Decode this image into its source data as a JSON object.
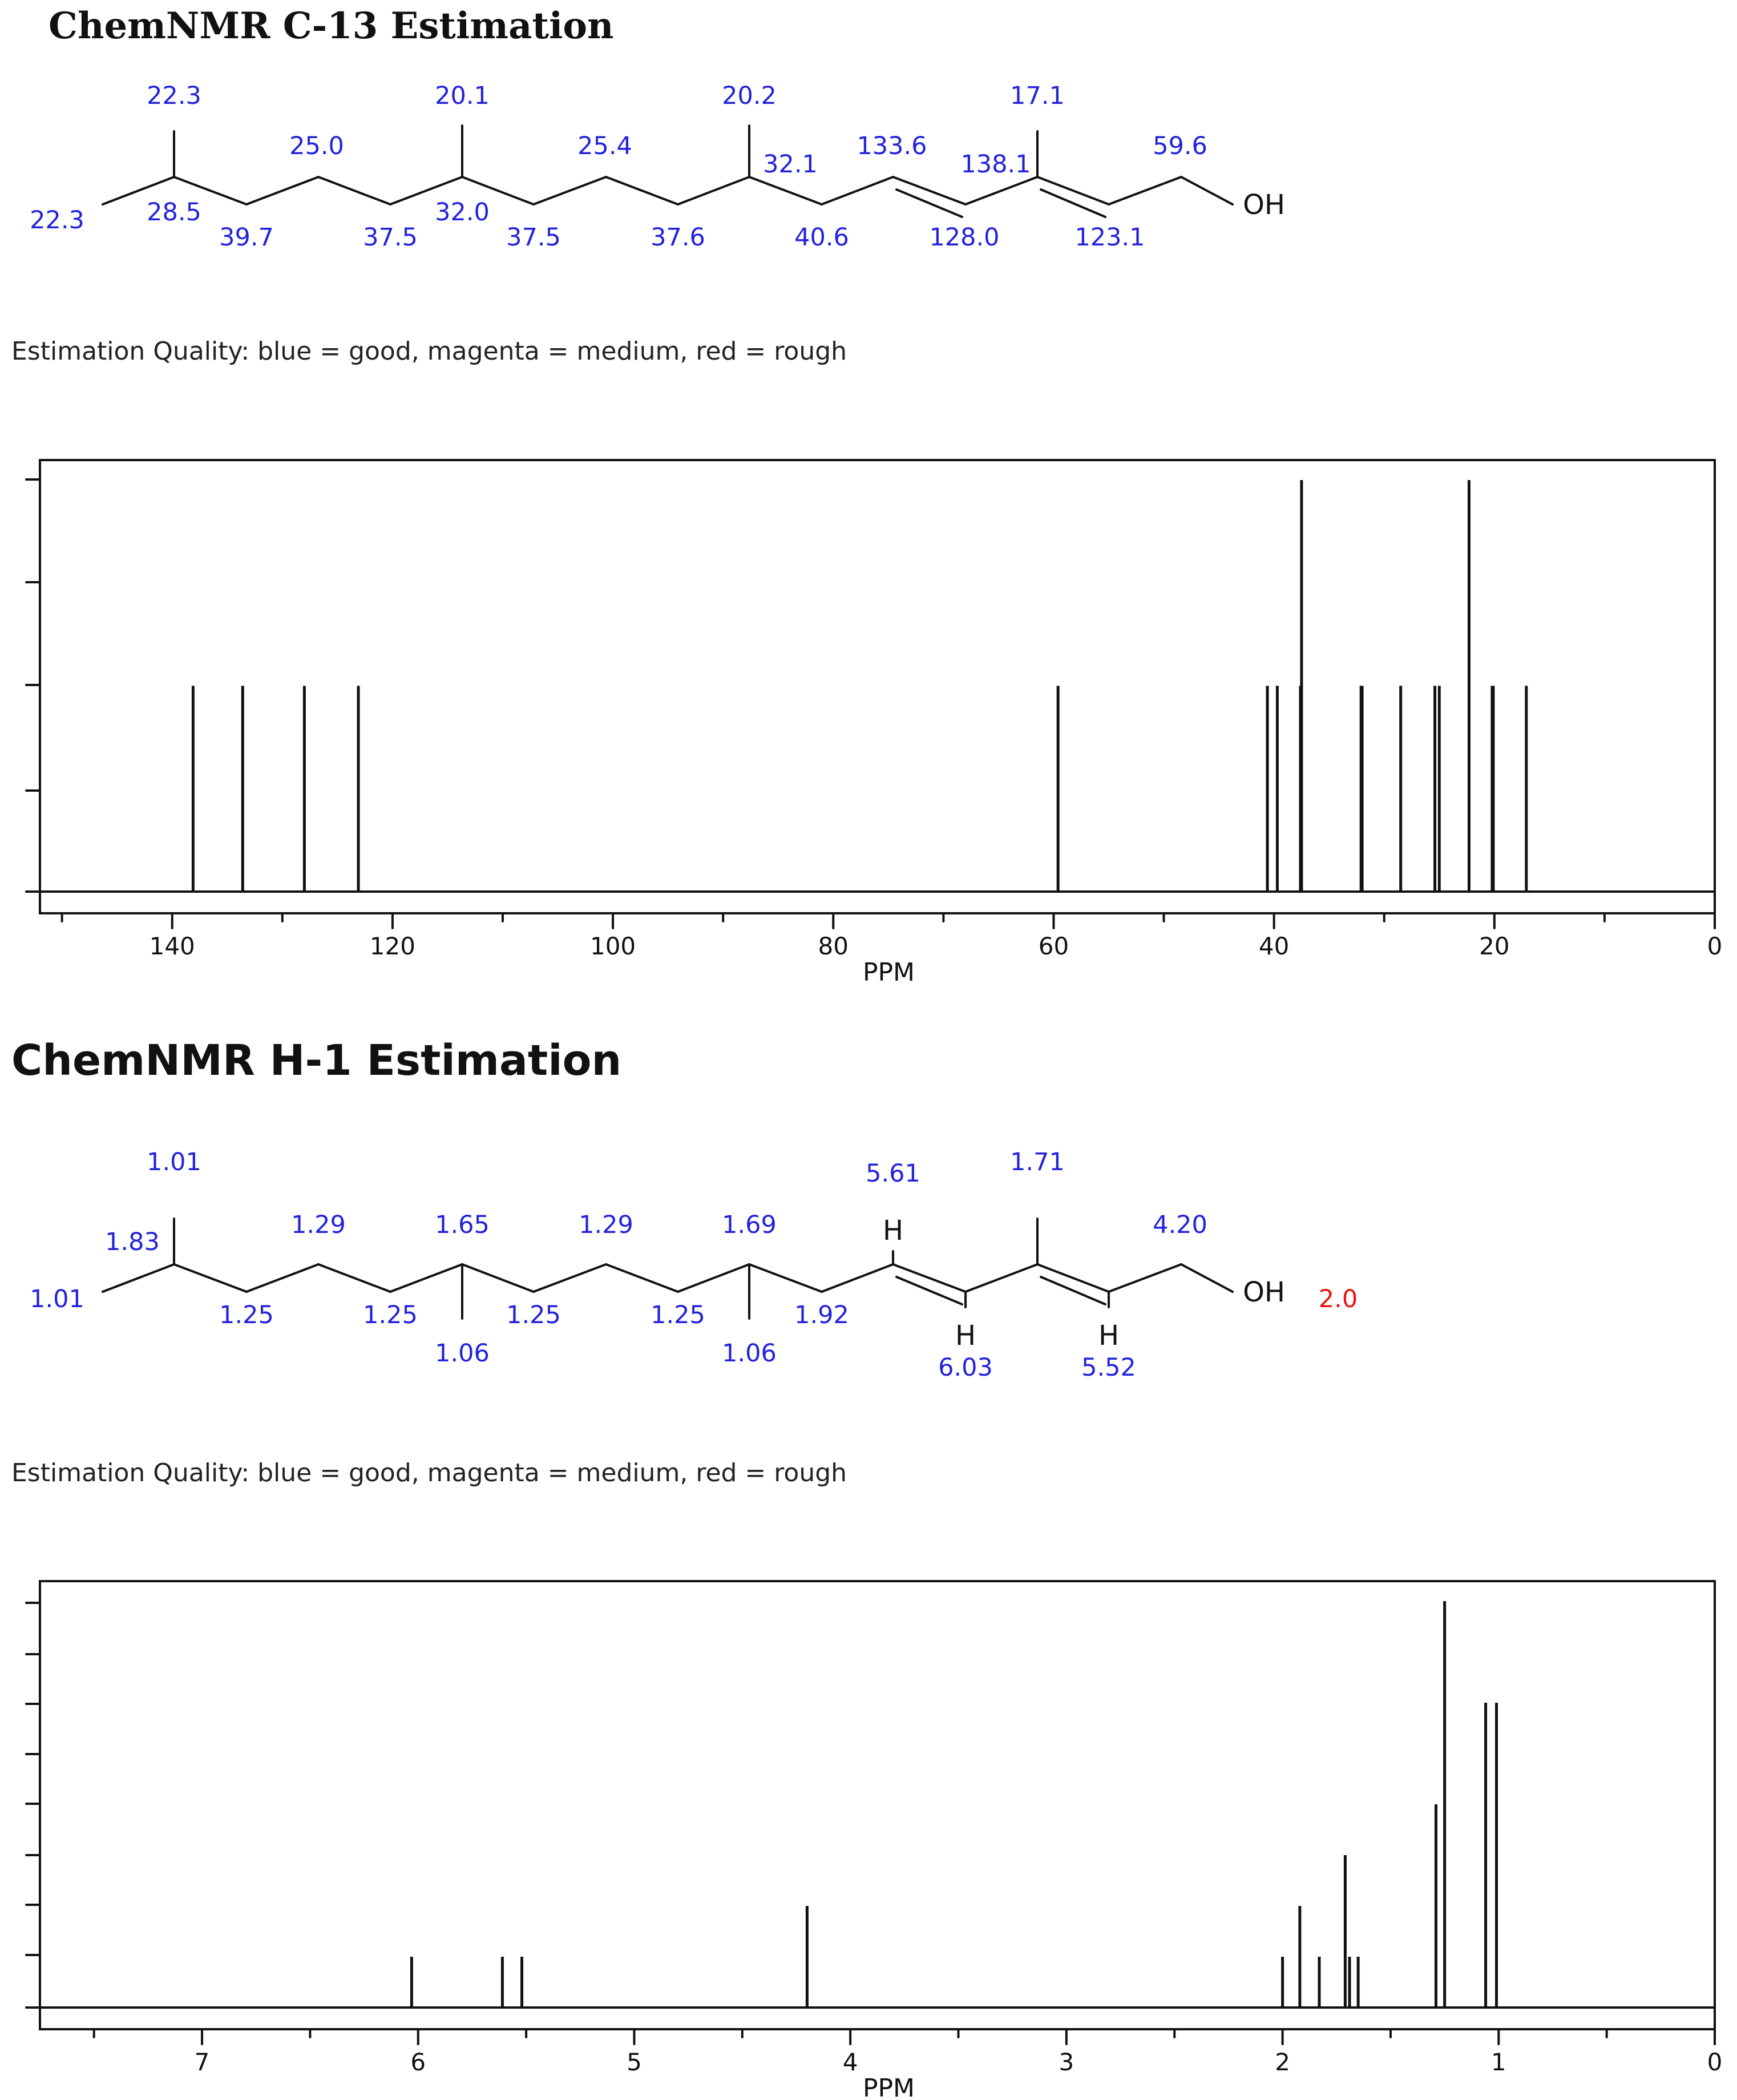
{
  "c13": {
    "title": "ChemNMR C-13 Estimation",
    "quality": "Estimation Quality: blue = good, magenta = medium, red = rough",
    "oh_label": "OH",
    "shift_labels": [
      "22.3",
      "20.1",
      "20.2",
      "17.1",
      "25.0",
      "25.4",
      "133.6",
      "59.6",
      "32.1",
      "138.1",
      "22.3",
      "28.5",
      "32.0",
      "39.7",
      "37.5",
      "37.5",
      "37.6",
      "40.6",
      "128.0",
      "123.1"
    ]
  },
  "h1": {
    "title": "ChemNMR H-1 Estimation",
    "quality": "Estimation Quality: blue = good, magenta = medium, red = rough",
    "oh_label": "OH",
    "h_label": "H",
    "shift_labels": [
      "1.01",
      "1.71",
      "5.61",
      "1.29",
      "1.65",
      "1.29",
      "1.69",
      "4.20",
      "1.83",
      "1.01",
      "1.25",
      "1.25",
      "1.25",
      "1.25",
      "1.92",
      "1.06",
      "1.06",
      "6.03",
      "5.52",
      "2.0"
    ]
  },
  "colors": {
    "good": "#2222dd",
    "rough": "#ee1111",
    "ink": "#111111"
  },
  "chart_data": [
    {
      "type": "bar",
      "xlabel": "PPM",
      "xlim": [
        152,
        0
      ],
      "x_reversed": true,
      "x_ticks": [
        "140",
        "120",
        "100",
        "80",
        "60",
        "40",
        "20",
        "0"
      ],
      "x_tick_values": [
        140,
        120,
        100,
        80,
        60,
        40,
        20,
        0
      ],
      "grid": false,
      "peaks": [
        {
          "ppm": 138.1,
          "intensity": 1
        },
        {
          "ppm": 133.6,
          "intensity": 1
        },
        {
          "ppm": 128.0,
          "intensity": 1
        },
        {
          "ppm": 123.1,
          "intensity": 1
        },
        {
          "ppm": 59.6,
          "intensity": 1
        },
        {
          "ppm": 40.6,
          "intensity": 1
        },
        {
          "ppm": 39.7,
          "intensity": 1
        },
        {
          "ppm": 37.6,
          "intensity": 1
        },
        {
          "ppm": 37.5,
          "intensity": 2
        },
        {
          "ppm": 32.1,
          "intensity": 1
        },
        {
          "ppm": 32.0,
          "intensity": 1
        },
        {
          "ppm": 28.5,
          "intensity": 1
        },
        {
          "ppm": 25.4,
          "intensity": 1
        },
        {
          "ppm": 25.0,
          "intensity": 1
        },
        {
          "ppm": 22.3,
          "intensity": 2
        },
        {
          "ppm": 20.2,
          "intensity": 1
        },
        {
          "ppm": 20.1,
          "intensity": 1
        },
        {
          "ppm": 17.1,
          "intensity": 1
        }
      ]
    },
    {
      "type": "bar",
      "xlabel": "PPM",
      "xlim": [
        7.75,
        0
      ],
      "x_reversed": true,
      "x_ticks": [
        "7",
        "6",
        "5",
        "4",
        "3",
        "2",
        "1",
        "0"
      ],
      "x_tick_values": [
        7,
        6,
        5,
        4,
        3,
        2,
        1,
        0
      ],
      "grid": false,
      "peaks": [
        {
          "ppm": 6.03,
          "intensity": 1
        },
        {
          "ppm": 5.61,
          "intensity": 1
        },
        {
          "ppm": 5.52,
          "intensity": 1
        },
        {
          "ppm": 4.2,
          "intensity": 2
        },
        {
          "ppm": 2.0,
          "intensity": 1
        },
        {
          "ppm": 1.92,
          "intensity": 2
        },
        {
          "ppm": 1.83,
          "intensity": 1
        },
        {
          "ppm": 1.71,
          "intensity": 3
        },
        {
          "ppm": 1.69,
          "intensity": 1
        },
        {
          "ppm": 1.65,
          "intensity": 1
        },
        {
          "ppm": 1.29,
          "intensity": 4
        },
        {
          "ppm": 1.25,
          "intensity": 8
        },
        {
          "ppm": 1.06,
          "intensity": 6
        },
        {
          "ppm": 1.01,
          "intensity": 6
        }
      ]
    }
  ]
}
